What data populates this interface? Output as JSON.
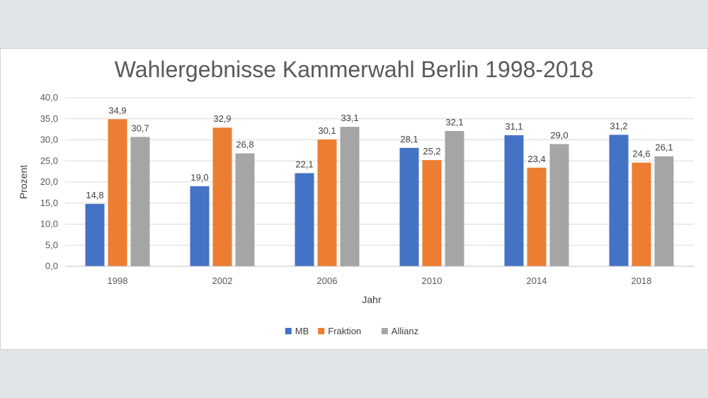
{
  "chart_data": {
    "type": "bar",
    "title": "Wahlergebnisse Kammerwahl Berlin 1998-2018",
    "xlabel": "Jahr",
    "ylabel": "Prozent",
    "ylim": [
      0,
      40
    ],
    "yticks": [
      "0,0",
      "5,0",
      "10,0",
      "15,0",
      "20,0",
      "25,0",
      "30,0",
      "35,0",
      "40,0"
    ],
    "categories": [
      "1998",
      "2002",
      "2006",
      "2010",
      "2014",
      "2018"
    ],
    "series": [
      {
        "name": "MB",
        "color": "#4472c4",
        "values": [
          14.8,
          19.0,
          22.1,
          28.1,
          31.1,
          31.2
        ],
        "labels": [
          "14,8",
          "19,0",
          "22,1",
          "28,1",
          "31,1",
          "31,2"
        ]
      },
      {
        "name": "Fraktion",
        "color": "#ed7d31",
        "values": [
          34.9,
          32.9,
          30.1,
          25.2,
          23.4,
          24.6
        ],
        "labels": [
          "34,9",
          "32,9",
          "30,1",
          "25,2",
          "23,4",
          "24,6"
        ]
      },
      {
        "name": "Allianz",
        "color": "#a5a5a5",
        "values": [
          30.7,
          26.8,
          33.1,
          32.1,
          29.0,
          26.1
        ],
        "labels": [
          "30,7",
          "26,8",
          "33,1",
          "32,1",
          "29,0",
          "26,1"
        ]
      }
    ],
    "grid": true,
    "legend": "bottom-center"
  }
}
